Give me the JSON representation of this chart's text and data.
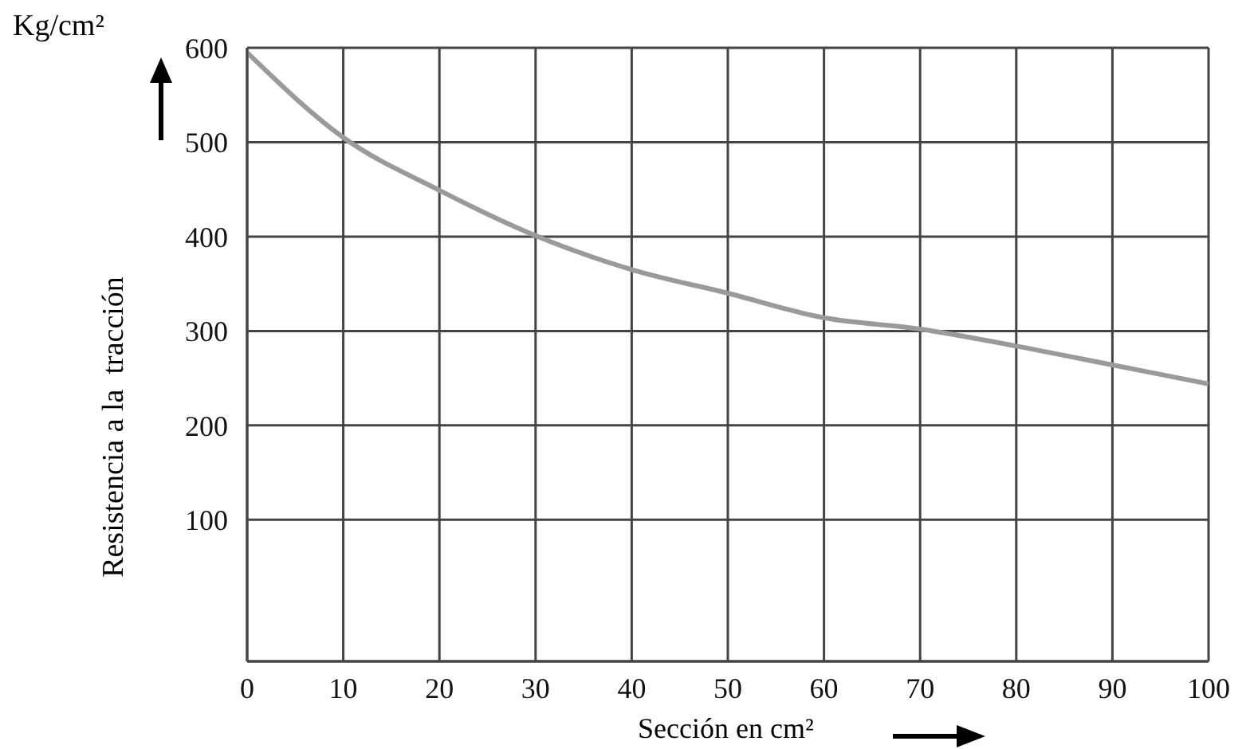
{
  "chart_data": {
    "type": "line",
    "xlabel": "Sección en cm²",
    "ylabel": "Resistencia a la  tracción",
    "annotations": [
      "Kg/cm²"
    ],
    "x": [
      0,
      10,
      20,
      30,
      40,
      50,
      60,
      70,
      80,
      90,
      100
    ],
    "series": [
      {
        "color": "#9a9a9a",
        "values": [
          595,
          505,
          449,
          401,
          365,
          340,
          314,
          302,
          284,
          264,
          244
        ]
      }
    ],
    "xlim": [
      0,
      100
    ],
    "xticks": [
      0,
      10,
      20,
      30,
      40,
      50,
      60,
      70,
      80,
      90,
      100
    ],
    "ylim": [
      -50,
      600
    ],
    "yticks": [
      100,
      200,
      300,
      400,
      500,
      600
    ],
    "grid": true,
    "marker": "none",
    "line_style": "solid"
  }
}
